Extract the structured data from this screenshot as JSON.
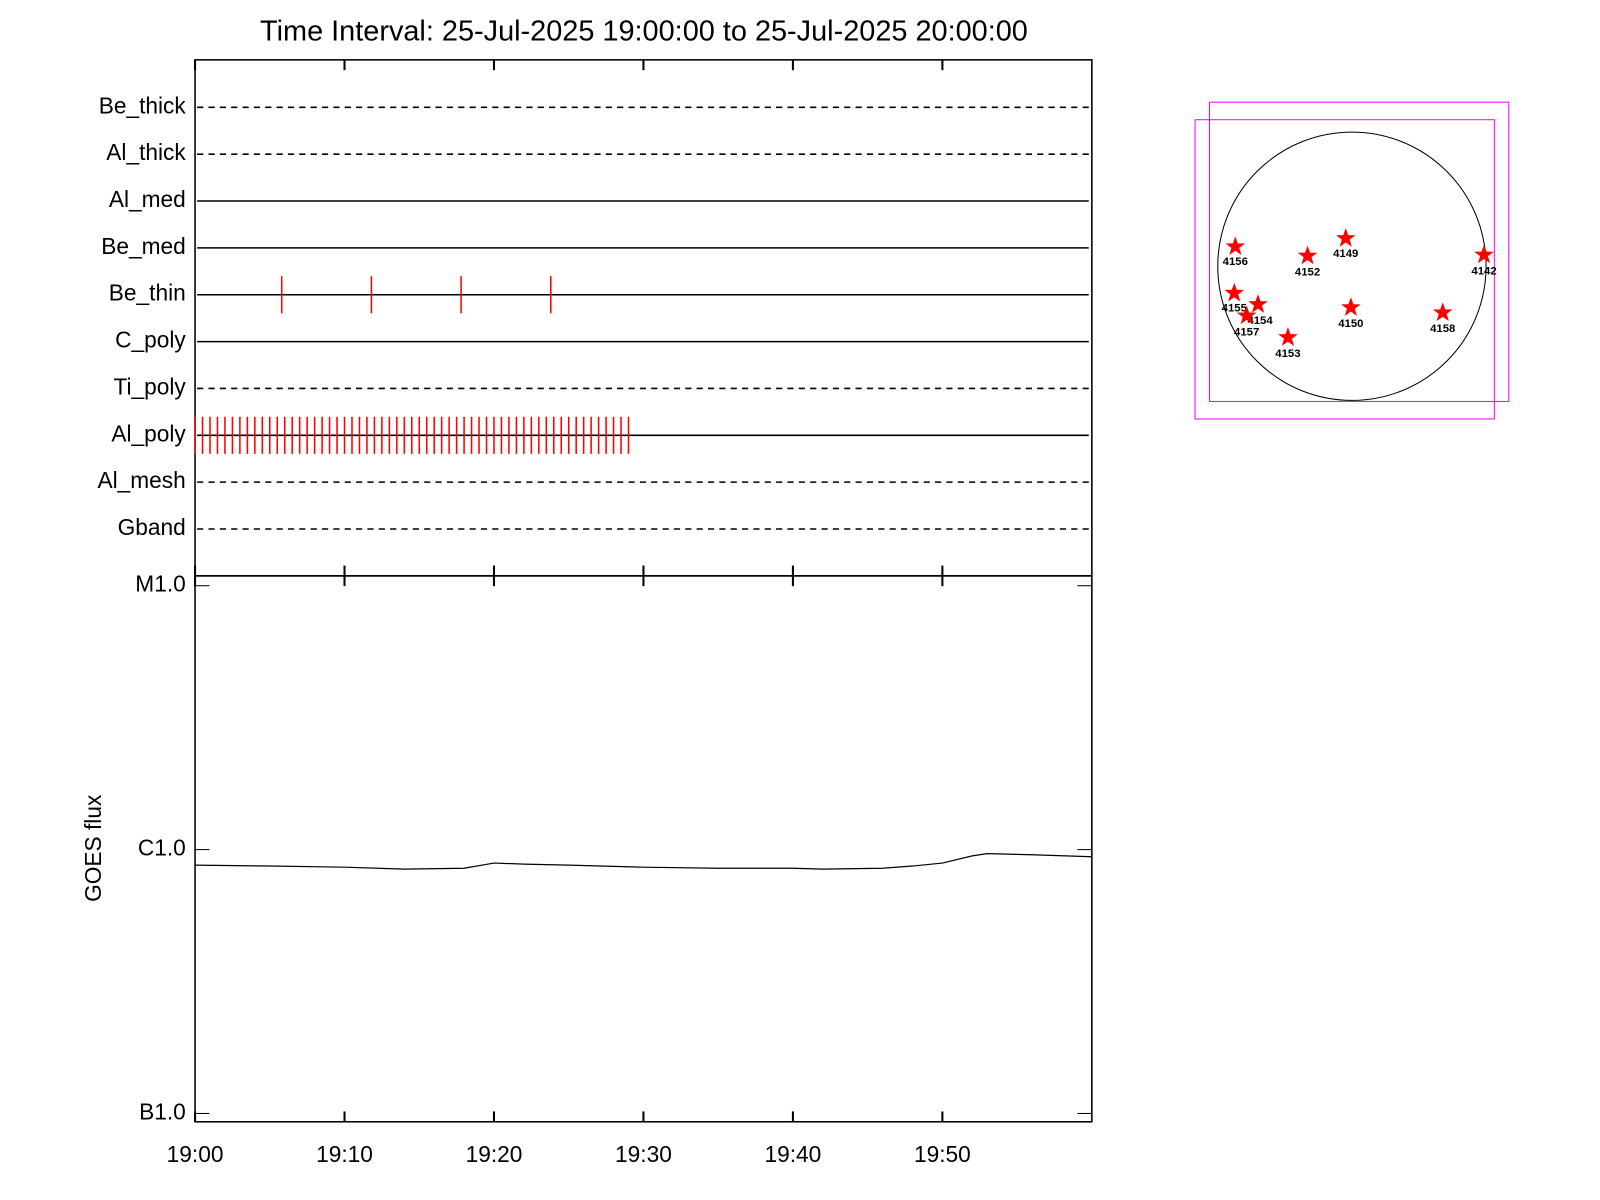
{
  "chart_data": [
    {
      "type": "timeline",
      "title": "Time Interval: 25-Jul-2025 19:00:00 to 25-Jul-2025 20:00:00",
      "categories": [
        "Be_thick",
        "Al_thick",
        "Al_med",
        "Be_med",
        "Be_thin",
        "C_poly",
        "Ti_poly",
        "Al_poly",
        "Al_mesh",
        "Gband"
      ],
      "line_styles": [
        "dashed",
        "dashed",
        "solid",
        "solid",
        "solid",
        "solid",
        "dashed",
        "solid",
        "dashed",
        "dashed"
      ],
      "events": [
        [],
        [],
        [],
        [],
        [
          5.8,
          11.8,
          17.8,
          23.8
        ],
        [],
        [],
        [
          0,
          0.5,
          1,
          1.5,
          2,
          2.5,
          3,
          3.5,
          4,
          4.5,
          5,
          5.5,
          6,
          6.5,
          7,
          7.5,
          8,
          8.5,
          9,
          9.5,
          10,
          10.5,
          11,
          11.5,
          12,
          12.5,
          13,
          13.5,
          14,
          14.5,
          15,
          15.5,
          16,
          16.5,
          17,
          17.5,
          18,
          18.5,
          19,
          19.5,
          20,
          20.5,
          21,
          21.5,
          22,
          22.5,
          23,
          23.5,
          24,
          24.5,
          25,
          25.5,
          26,
          26.5,
          27,
          27.5,
          28,
          28.5,
          29
        ],
        [],
        []
      ],
      "color": "#ff0000",
      "xlim": [
        0,
        60
      ]
    },
    {
      "type": "line",
      "ylabel": "GOES flux",
      "log_scale": true,
      "x": [
        0,
        5,
        10,
        14,
        18,
        20,
        22,
        25,
        30,
        35,
        40,
        42,
        46,
        48,
        50,
        52,
        53,
        56,
        60
      ],
      "values": [
        8.73e-07,
        8.66e-07,
        8.58e-07,
        8.43e-07,
        8.5e-07,
        8.89e-07,
        8.81e-07,
        8.73e-07,
        8.58e-07,
        8.5e-07,
        8.5e-07,
        8.43e-07,
        8.5e-07,
        8.66e-07,
        8.89e-07,
        9.47e-07,
        9.65e-07,
        9.56e-07,
        9.39e-07
      ],
      "color": "#000000",
      "xlim": [
        0,
        60
      ],
      "xticks": [
        {
          "value": 0,
          "label": "19:00"
        },
        {
          "value": 10,
          "label": "19:10"
        },
        {
          "value": 20,
          "label": "19:20"
        },
        {
          "value": 30,
          "label": "19:30"
        },
        {
          "value": 40,
          "label": "19:40"
        },
        {
          "value": 50,
          "label": "19:50"
        }
      ],
      "ylim": [
        9.3e-08,
        1.09e-05
      ],
      "yticks": [
        {
          "value": 1e-07,
          "label": "B1.0"
        },
        {
          "value": 1e-06,
          "label": "C1.0"
        },
        {
          "value": 1e-05,
          "label": "M1.0"
        }
      ]
    }
  ],
  "sun_map": {
    "regions": [
      "4156",
      "4149",
      "4152",
      "4142",
      "4155",
      "4154",
      "4157",
      "4150",
      "4158",
      "4153"
    ]
  }
}
